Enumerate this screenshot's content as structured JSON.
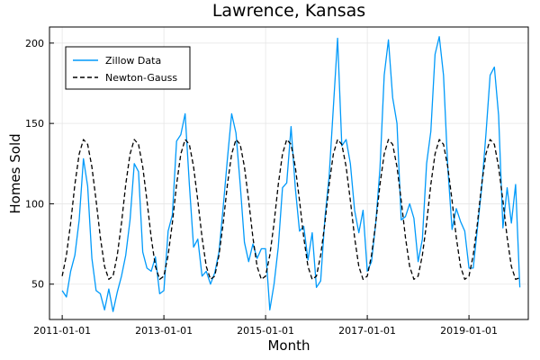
{
  "chart_data": {
    "type": "line",
    "title": "Lawrence, Kansas",
    "xlabel": "Month",
    "ylabel": "Homes Sold",
    "x_ticks": [
      "2011-01-01",
      "2013-01-01",
      "2015-01-01",
      "2017-01-01",
      "2019-01-01"
    ],
    "y_ticks": [
      50,
      100,
      150,
      200
    ],
    "ylim": [
      28,
      210
    ],
    "xlim": [
      "2010-10-01",
      "2020-03-01"
    ],
    "grid": true,
    "legend": "top-left",
    "x_start": "2011-01-01",
    "series": [
      {
        "name": "Zillow Data",
        "color": "#009AFA",
        "dash": "solid",
        "values": [
          46,
          42,
          58,
          68,
          90,
          128,
          111,
          66,
          46,
          44,
          34,
          47,
          33,
          45,
          55,
          68,
          90,
          125,
          120,
          70,
          60,
          58,
          67,
          44,
          46,
          83,
          93,
          139,
          143,
          156,
          112,
          73,
          78,
          55,
          58,
          50,
          57,
          70,
          98,
          128,
          156,
          144,
          112,
          76,
          64,
          75,
          66,
          72,
          72,
          34,
          50,
          73,
          110,
          113,
          148,
          110,
          83,
          86,
          65,
          82,
          48,
          52,
          91,
          117,
          160,
          203,
          136,
          140,
          125,
          96,
          82,
          96,
          58,
          64,
          88,
          122,
          180,
          202,
          166,
          150,
          90,
          92,
          100,
          91,
          64,
          78,
          125,
          145,
          193,
          204,
          180,
          123,
          84,
          97,
          89,
          83,
          60,
          60,
          85,
          110,
          143,
          180,
          185,
          155,
          85,
          110,
          88,
          112,
          48
        ]
      },
      {
        "name": "Newton-Gauss",
        "color": "#000000",
        "dash": "dashed",
        "values": [
          55,
          68,
          88,
          112,
          131,
          140,
          137,
          123,
          102,
          79,
          61,
          53,
          55,
          68,
          88,
          112,
          131,
          140,
          137,
          123,
          102,
          79,
          61,
          53,
          55,
          68,
          88,
          112,
          131,
          140,
          137,
          123,
          102,
          79,
          61,
          53,
          55,
          68,
          88,
          112,
          131,
          140,
          137,
          123,
          102,
          79,
          61,
          53,
          55,
          68,
          88,
          112,
          131,
          140,
          137,
          123,
          102,
          79,
          61,
          53,
          55,
          68,
          88,
          112,
          131,
          140,
          137,
          123,
          102,
          79,
          61,
          53,
          55,
          68,
          88,
          112,
          131,
          140,
          137,
          123,
          102,
          79,
          61,
          53,
          55,
          68,
          88,
          112,
          131,
          140,
          137,
          123,
          102,
          79,
          61,
          53,
          55,
          68,
          88,
          112,
          131,
          140,
          137,
          123,
          102,
          79,
          61,
          53,
          54
        ]
      }
    ]
  }
}
